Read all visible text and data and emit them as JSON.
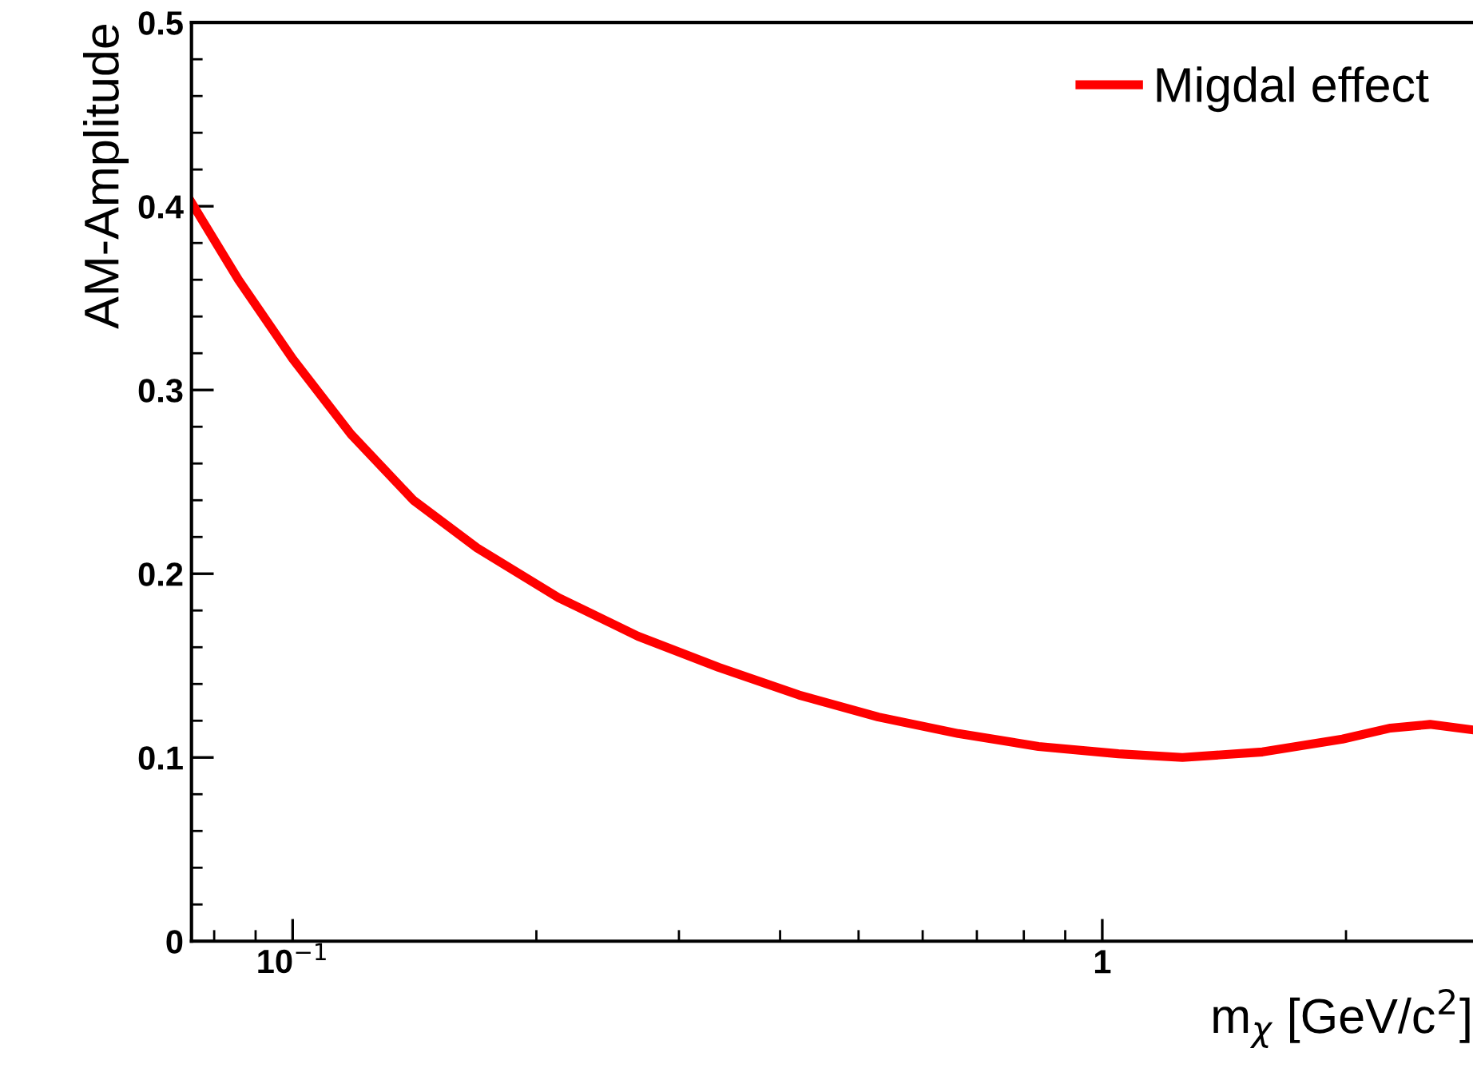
{
  "chart_data": {
    "type": "line",
    "xlabel": "m$_{χ}$ [GeV/c$^{2}$]",
    "ylabel": "AM-Amplitude",
    "log": "x",
    "legend": "top right",
    "grid": false,
    "series": [
      {
        "name": "Migdal effect",
        "color": "#ff0000",
        "x": [
          0.075,
          0.0857,
          0.1,
          0.118,
          0.141,
          0.169,
          0.213,
          0.267,
          0.336,
          0.422,
          0.529,
          0.664,
          0.834,
          1.047,
          1.256,
          1.577,
          1.98,
          2.27,
          2.54,
          2.87
        ],
        "values": [
          0.402,
          0.36,
          0.317,
          0.276,
          0.24,
          0.214,
          0.187,
          0.166,
          0.149,
          0.134,
          0.122,
          0.113,
          0.106,
          0.102,
          0.1,
          0.103,
          0.11,
          0.116,
          0.118,
          0.115
        ]
      }
    ],
    "xlim": [
      0.075,
      2.87
    ],
    "xticks": [
      {
        "value": 0.1,
        "label": "10$^{−1}$"
      },
      1
    ],
    "ylim": [
      0,
      0.5
    ],
    "yticks": [
      0,
      0.1,
      0.2,
      0.3,
      0.4,
      0.5
    ]
  }
}
